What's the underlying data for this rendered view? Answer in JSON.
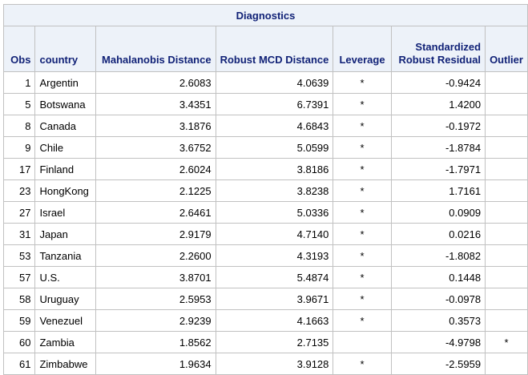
{
  "table": {
    "title": "Diagnostics",
    "headers": {
      "obs": "Obs",
      "country": "country",
      "mahalanobis": "Mahalanobis Distance",
      "robust_mcd": "Robust MCD Distance",
      "leverage": "Leverage",
      "residual_line1": "Standardized",
      "residual_line2": "Robust Residual",
      "outlier": "Outlier"
    },
    "rows": [
      {
        "obs": "1",
        "country": "Argentin",
        "mahalanobis": "2.6083",
        "robust_mcd": "4.0639",
        "leverage": "*",
        "residual": "-0.9424",
        "outlier": ""
      },
      {
        "obs": "5",
        "country": "Botswana",
        "mahalanobis": "3.4351",
        "robust_mcd": "6.7391",
        "leverage": "*",
        "residual": "1.4200",
        "outlier": ""
      },
      {
        "obs": "8",
        "country": "Canada",
        "mahalanobis": "3.1876",
        "robust_mcd": "4.6843",
        "leverage": "*",
        "residual": "-0.1972",
        "outlier": ""
      },
      {
        "obs": "9",
        "country": "Chile",
        "mahalanobis": "3.6752",
        "robust_mcd": "5.0599",
        "leverage": "*",
        "residual": "-1.8784",
        "outlier": ""
      },
      {
        "obs": "17",
        "country": "Finland",
        "mahalanobis": "2.6024",
        "robust_mcd": "3.8186",
        "leverage": "*",
        "residual": "-1.7971",
        "outlier": ""
      },
      {
        "obs": "23",
        "country": "HongKong",
        "mahalanobis": "2.1225",
        "robust_mcd": "3.8238",
        "leverage": "*",
        "residual": "1.7161",
        "outlier": ""
      },
      {
        "obs": "27",
        "country": "Israel",
        "mahalanobis": "2.6461",
        "robust_mcd": "5.0336",
        "leverage": "*",
        "residual": "0.0909",
        "outlier": ""
      },
      {
        "obs": "31",
        "country": "Japan",
        "mahalanobis": "2.9179",
        "robust_mcd": "4.7140",
        "leverage": "*",
        "residual": "0.0216",
        "outlier": ""
      },
      {
        "obs": "53",
        "country": "Tanzania",
        "mahalanobis": "2.2600",
        "robust_mcd": "4.3193",
        "leverage": "*",
        "residual": "-1.8082",
        "outlier": ""
      },
      {
        "obs": "57",
        "country": "U.S.",
        "mahalanobis": "3.8701",
        "robust_mcd": "5.4874",
        "leverage": "*",
        "residual": "0.1448",
        "outlier": ""
      },
      {
        "obs": "58",
        "country": "Uruguay",
        "mahalanobis": "2.5953",
        "robust_mcd": "3.9671",
        "leverage": "*",
        "residual": "-0.0978",
        "outlier": ""
      },
      {
        "obs": "59",
        "country": "Venezuel",
        "mahalanobis": "2.9239",
        "robust_mcd": "4.1663",
        "leverage": "*",
        "residual": "0.3573",
        "outlier": ""
      },
      {
        "obs": "60",
        "country": "Zambia",
        "mahalanobis": "1.8562",
        "robust_mcd": "2.7135",
        "leverage": "",
        "residual": "-4.9798",
        "outlier": "*"
      },
      {
        "obs": "61",
        "country": "Zimbabwe",
        "mahalanobis": "1.9634",
        "robust_mcd": "3.9128",
        "leverage": "*",
        "residual": "-2.5959",
        "outlier": ""
      }
    ]
  },
  "colors": {
    "header_background": "#edf2f9",
    "header_text": "#112277",
    "grid_line": "#c1c1c1"
  }
}
